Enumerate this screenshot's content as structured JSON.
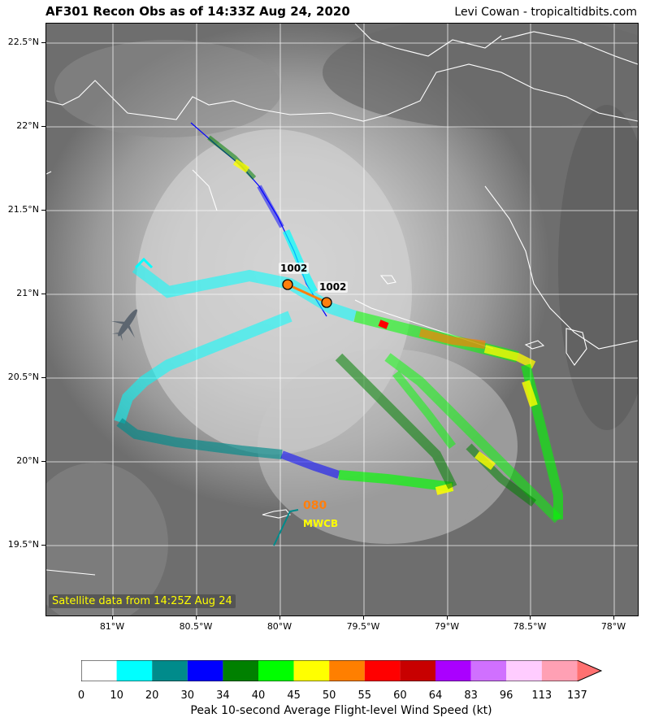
{
  "title": {
    "left": "AF301 Recon Obs as of 14:33Z Aug 24, 2020",
    "right": "Levi Cowan - tropicaltidbits.com"
  },
  "map": {
    "lon_range": [
      -81.4,
      -77.85
    ],
    "lat_range": [
      19.08,
      22.62
    ],
    "y_ticks": [
      "22.5°N",
      "22°N",
      "21.5°N",
      "21°N",
      "20.5°N",
      "20°N",
      "19.5°N"
    ],
    "y_tick_values": [
      22.5,
      22.0,
      21.5,
      21.0,
      20.5,
      20.0,
      19.5
    ],
    "x_ticks": [
      "81°W",
      "80.5°W",
      "80°W",
      "79.5°W",
      "79°W",
      "78.5°W",
      "78°W"
    ],
    "x_tick_values": [
      -81.0,
      -80.5,
      -80.0,
      -79.5,
      -79.0,
      -78.5,
      -78.0
    ],
    "satellite_note": "Satellite data from 14:25Z Aug 24",
    "pressure_labels": [
      {
        "text": "1002",
        "lon": -79.95,
        "lat": 21.06
      },
      {
        "text": "1002",
        "lon": -79.72,
        "lat": 20.95
      }
    ],
    "obs_value": "080",
    "obs_id": "MWCB",
    "colors": {
      "track_low": "#00ffff",
      "track_teal": "#008b8b",
      "track_blue": "#0000ff",
      "track_darkgreen": "#008000",
      "track_green": "#00ff00",
      "track_yellow": "#ffff00",
      "track_orange": "#ff7f00",
      "track_red": "#ff0000",
      "coast": "#ffffff",
      "center_marker": "#ff7f0e"
    }
  },
  "colorbar": {
    "title": "Peak 10-second Average Flight-level Wind Speed (kt)",
    "labels": [
      "0",
      "10",
      "20",
      "30",
      "34",
      "40",
      "45",
      "50",
      "55",
      "60",
      "64",
      "83",
      "96",
      "113",
      "137"
    ],
    "colors": [
      "#ffffff",
      "#00ffff",
      "#008b8b",
      "#0000ff",
      "#008000",
      "#00ff00",
      "#ffff00",
      "#ff7f00",
      "#ff0000",
      "#c80000",
      "#aa00ff",
      "#d070ff",
      "#ffccff",
      "#ffa0b4"
    ],
    "extend_color": "#ff7070"
  }
}
